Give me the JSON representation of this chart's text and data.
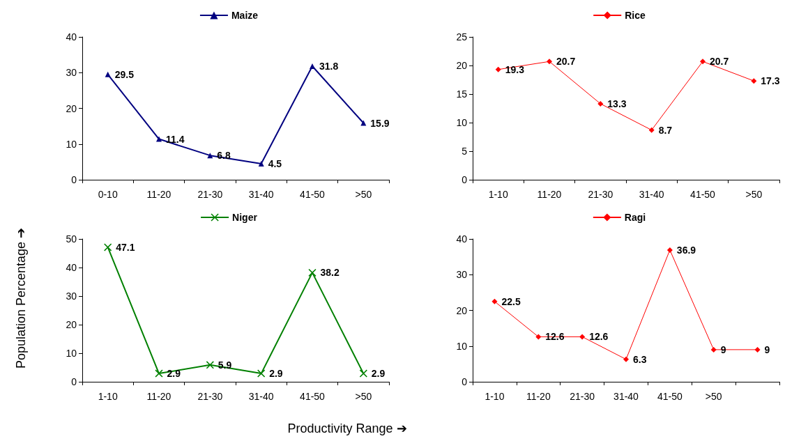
{
  "chart_data": [
    {
      "type": "line",
      "categories": [
        "0-10",
        "11-20",
        "21-30",
        "31-40",
        "41-50",
        ">50"
      ],
      "series": [
        {
          "name": "Maize",
          "color": "#000080",
          "values": [
            29.5,
            11.4,
            6.8,
            4.5,
            31.8,
            15.9
          ]
        }
      ],
      "ylim": [
        0,
        40
      ],
      "yticks": [
        0,
        10,
        20,
        30,
        40
      ],
      "marker": "triangle",
      "data_labels": true,
      "legend": "top",
      "grid": false
    },
    {
      "type": "line",
      "categories": [
        "1-10",
        "11-20",
        "21-30",
        "31-40",
        "41-50",
        ">50"
      ],
      "series": [
        {
          "name": "Rice",
          "color": "#ff0000",
          "values": [
            19.3,
            20.7,
            13.3,
            8.7,
            20.7,
            17.3
          ]
        }
      ],
      "ylim": [
        0,
        25
      ],
      "yticks": [
        0,
        5,
        10,
        15,
        20,
        25
      ],
      "marker": "diamond",
      "data_labels": true,
      "legend": "top",
      "grid": false
    },
    {
      "type": "line",
      "categories": [
        "1-10",
        "11-20",
        "21-30",
        "31-40",
        "41-50",
        ">50"
      ],
      "series": [
        {
          "name": "Niger",
          "color": "#008000",
          "values": [
            47.1,
            2.9,
            5.9,
            2.9,
            38.2,
            2.9
          ]
        }
      ],
      "ylim": [
        0,
        50
      ],
      "yticks": [
        0,
        10,
        20,
        30,
        40,
        50
      ],
      "marker": "cross",
      "data_labels": true,
      "legend": "top",
      "grid": false,
      "xlabel": "Productivity Range ➔",
      "ylabel": "Population Percentage ➔"
    },
    {
      "type": "line",
      "categories": [
        "1-10",
        "11-20",
        "21-30",
        "31-40",
        "41-50",
        ">50",
        null
      ],
      "series": [
        {
          "name": "Ragi",
          "color": "#ff0000",
          "values": [
            22.5,
            12.6,
            12.6,
            6.3,
            36.9,
            9,
            9
          ]
        }
      ],
      "ylim": [
        0,
        40
      ],
      "yticks": [
        0,
        10,
        20,
        30,
        40
      ],
      "marker": "diamond",
      "data_labels": true,
      "legend": "top",
      "grid": false
    }
  ]
}
